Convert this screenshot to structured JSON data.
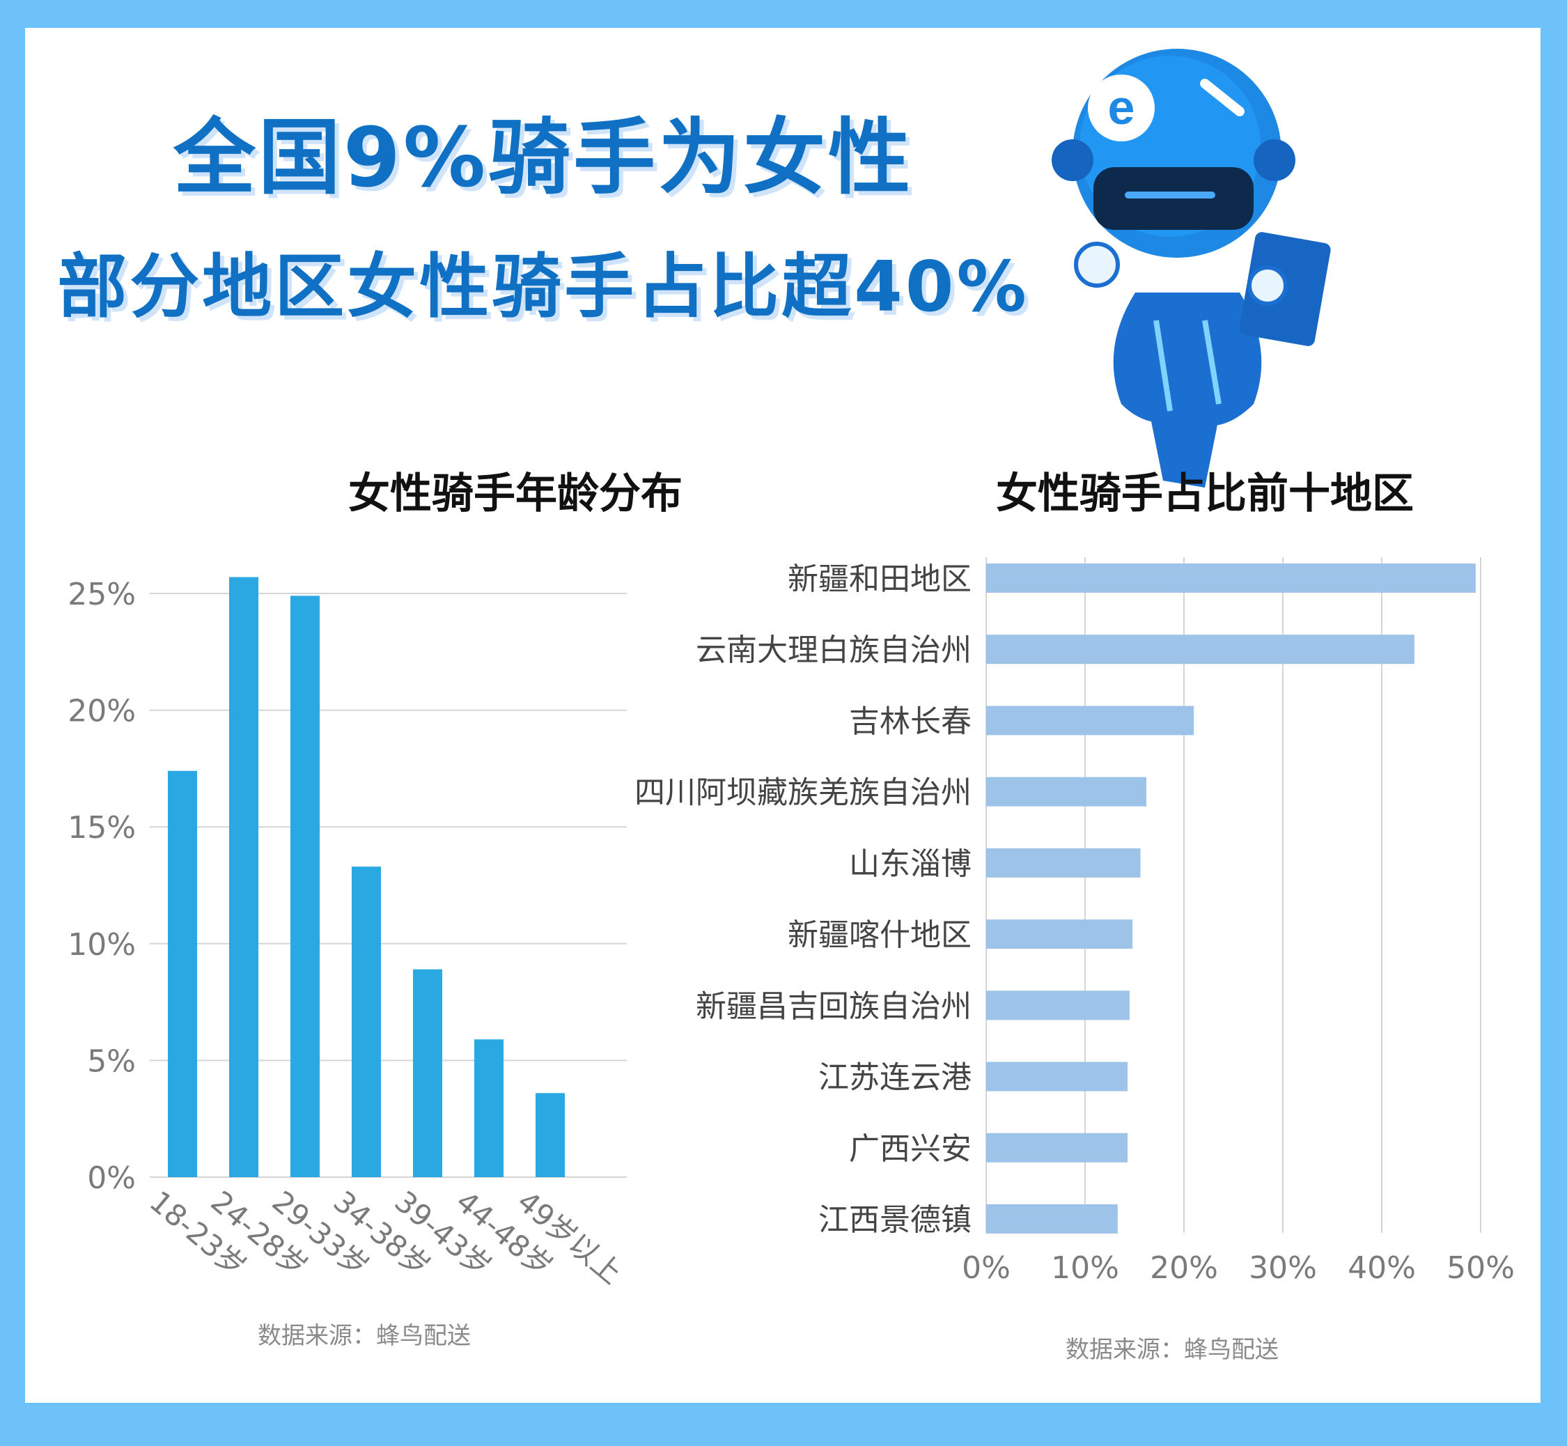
{
  "header": {
    "title": "全国9%骑手为女性",
    "subtitle": "部分地区女性骑手占比超40%"
  },
  "mascot": {
    "icon": "rider-mascot-icon",
    "badge_text": "e"
  },
  "chart_data": [
    {
      "type": "bar",
      "title": "女性骑手年龄分布",
      "categories": [
        "18-23岁",
        "24-28岁",
        "29-33岁",
        "34-38岁",
        "39-43岁",
        "44-48岁",
        "49岁以上"
      ],
      "values": [
        17.4,
        25.7,
        24.9,
        13.3,
        8.9,
        5.9,
        3.6
      ],
      "y_ticks": [
        "0%",
        "5%",
        "10%",
        "15%",
        "20%",
        "25%"
      ],
      "ylim": [
        0,
        25
      ],
      "color": "#29a8e1",
      "grid": true,
      "source": "数据来源：蜂鸟配送"
    },
    {
      "type": "bar",
      "orientation": "horizontal",
      "title": "女性骑手占比前十地区",
      "categories": [
        "新疆和田地区",
        "云南大理白族自治州",
        "吉林长春",
        "四川阿坝藏族羌族自治州",
        "山东淄博",
        "新疆喀什地区",
        "新疆昌吉回族自治州",
        "江苏连云港",
        "广西兴安",
        "江西景德镇"
      ],
      "values": [
        49.5,
        43.3,
        21.0,
        16.2,
        15.6,
        14.8,
        14.5,
        14.3,
        14.3,
        13.3
      ],
      "x_ticks": [
        "0%",
        "10%",
        "20%",
        "30%",
        "40%",
        "50%"
      ],
      "xlim": [
        0,
        50
      ],
      "color": "#9dc3e8",
      "grid": true,
      "source": "数据来源：蜂鸟配送"
    }
  ]
}
